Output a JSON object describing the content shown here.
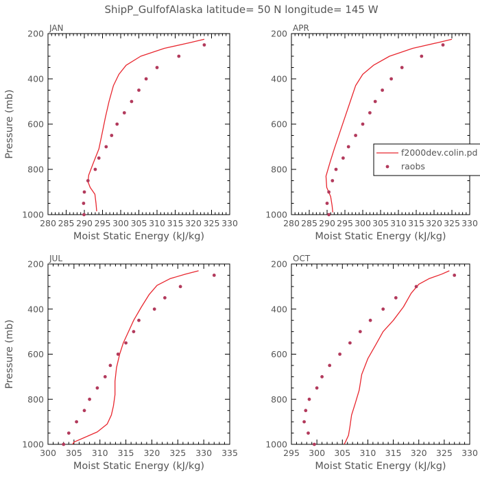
{
  "page": {
    "title": "ShipP_GulfofAlaska   latitude= 50 N longitude= 145 W"
  },
  "legend": {
    "model_label": "f2000dev.colin.pd",
    "obs_label": "raobs"
  },
  "colors": {
    "model": "#e8262e",
    "obs": "#b23a5c",
    "axis": "#000000",
    "text": "#555555"
  },
  "chart_data": [
    {
      "type": "line",
      "panel_label": "JAN",
      "xlabel": "Moist Static Energy (kJ/kg)",
      "ylabel": "Pressure (mb)",
      "xlim": [
        280,
        330
      ],
      "ylim": [
        1000,
        200
      ],
      "xticks": [
        280,
        285,
        290,
        295,
        300,
        305,
        310,
        315,
        320,
        325,
        330
      ],
      "yticks": [
        200,
        400,
        600,
        800,
        1000
      ],
      "series": [
        {
          "name": "f2000dev.colin.pd",
          "kind": "line",
          "points": [
            [
              323.0,
              225
            ],
            [
              319.0,
              240
            ],
            [
              312.0,
              265
            ],
            [
              305.5,
              300
            ],
            [
              301.5,
              340
            ],
            [
              299.5,
              380
            ],
            [
              298.0,
              430
            ],
            [
              296.8,
              500
            ],
            [
              295.8,
              570
            ],
            [
              294.9,
              640
            ],
            [
              294.0,
              710
            ],
            [
              292.5,
              770
            ],
            [
              291.2,
              825
            ],
            [
              291.0,
              855
            ],
            [
              291.6,
              880
            ],
            [
              292.9,
              910
            ],
            [
              293.2,
              950
            ],
            [
              293.4,
              985
            ]
          ]
        },
        {
          "name": "raobs",
          "kind": "scatter",
          "points": [
            [
              323.0,
              250
            ],
            [
              316.0,
              300
            ],
            [
              310.0,
              350
            ],
            [
              307.0,
              400
            ],
            [
              305.0,
              450
            ],
            [
              303.0,
              500
            ],
            [
              301.0,
              550
            ],
            [
              299.0,
              600
            ],
            [
              297.5,
              650
            ],
            [
              296.0,
              700
            ],
            [
              294.0,
              750
            ],
            [
              293.0,
              800
            ],
            [
              291.0,
              850
            ],
            [
              290.0,
              900
            ],
            [
              289.8,
              950
            ],
            [
              289.9,
              1000
            ]
          ]
        }
      ]
    },
    {
      "type": "line",
      "panel_label": "APR",
      "xlabel": "Moist Static Energy (kJ/kg)",
      "ylabel": "",
      "xlim": [
        280,
        330
      ],
      "ylim": [
        1000,
        200
      ],
      "xticks": [
        280,
        285,
        290,
        295,
        300,
        305,
        310,
        315,
        320,
        325,
        330
      ],
      "yticks": [
        200,
        400,
        600,
        800,
        1000
      ],
      "series": [
        {
          "name": "f2000dev.colin.pd",
          "kind": "line",
          "points": [
            [
              325.0,
              225
            ],
            [
              321.0,
              240
            ],
            [
              314.0,
              265
            ],
            [
              307.5,
              300
            ],
            [
              303.0,
              340
            ],
            [
              300.0,
              380
            ],
            [
              298.0,
              430
            ],
            [
              296.5,
              500
            ],
            [
              295.0,
              570
            ],
            [
              293.5,
              640
            ],
            [
              292.0,
              710
            ],
            [
              290.8,
              770
            ],
            [
              289.7,
              830
            ],
            [
              289.9,
              880
            ],
            [
              291.0,
              920
            ],
            [
              291.4,
              960
            ],
            [
              291.6,
              990
            ]
          ]
        },
        {
          "name": "raobs",
          "kind": "scatter",
          "points": [
            [
              322.5,
              250
            ],
            [
              316.5,
              300
            ],
            [
              311.0,
              350
            ],
            [
              308.0,
              400
            ],
            [
              305.5,
              450
            ],
            [
              303.5,
              500
            ],
            [
              302.0,
              550
            ],
            [
              300.0,
              600
            ],
            [
              298.0,
              650
            ],
            [
              296.0,
              700
            ],
            [
              294.5,
              750
            ],
            [
              292.5,
              800
            ],
            [
              291.5,
              850
            ],
            [
              290.5,
              900
            ],
            [
              290.0,
              950
            ],
            [
              290.5,
              1000
            ]
          ]
        }
      ]
    },
    {
      "type": "line",
      "panel_label": "JUL",
      "xlabel": "Moist Static Energy (kJ/kg)",
      "ylabel": "Pressure (mb)",
      "xlim": [
        300,
        335
      ],
      "ylim": [
        1000,
        200
      ],
      "xticks": [
        300,
        305,
        310,
        315,
        320,
        325,
        330,
        335
      ],
      "yticks": [
        200,
        400,
        600,
        800,
        1000
      ],
      "series": [
        {
          "name": "f2000dev.colin.pd",
          "kind": "line",
          "points": [
            [
              329.0,
              230
            ],
            [
              326.5,
              245
            ],
            [
              323.5,
              265
            ],
            [
              321.0,
              295
            ],
            [
              319.5,
              335
            ],
            [
              318.0,
              390
            ],
            [
              316.5,
              450
            ],
            [
              315.5,
              500
            ],
            [
              314.5,
              550
            ],
            [
              313.8,
              600
            ],
            [
              313.2,
              660
            ],
            [
              312.9,
              720
            ],
            [
              312.9,
              780
            ],
            [
              312.6,
              830
            ],
            [
              312.2,
              870
            ],
            [
              311.4,
              910
            ],
            [
              309.5,
              945
            ],
            [
              307.0,
              970
            ],
            [
              305.0,
              990
            ],
            [
              304.6,
              1005
            ]
          ]
        },
        {
          "name": "raobs",
          "kind": "scatter",
          "points": [
            [
              332.0,
              250
            ],
            [
              325.5,
              300
            ],
            [
              322.5,
              350
            ],
            [
              320.5,
              400
            ],
            [
              317.5,
              450
            ],
            [
              316.5,
              500
            ],
            [
              315.0,
              550
            ],
            [
              313.5,
              600
            ],
            [
              312.0,
              650
            ],
            [
              311.0,
              700
            ],
            [
              309.5,
              750
            ],
            [
              308.0,
              800
            ],
            [
              307.0,
              850
            ],
            [
              305.5,
              900
            ],
            [
              304.0,
              950
            ],
            [
              303.0,
              1000
            ]
          ]
        }
      ]
    },
    {
      "type": "line",
      "panel_label": "OCT",
      "xlabel": "Moist Static Energy (kJ/kg)",
      "ylabel": "",
      "xlim": [
        295,
        330
      ],
      "ylim": [
        1000,
        200
      ],
      "xticks": [
        295,
        300,
        305,
        310,
        315,
        320,
        325,
        330
      ],
      "yticks": [
        200,
        400,
        600,
        800,
        1000
      ],
      "series": [
        {
          "name": "f2000dev.colin.pd",
          "kind": "line",
          "points": [
            [
              326.0,
              230
            ],
            [
              324.5,
              245
            ],
            [
              322.0,
              265
            ],
            [
              320.0,
              290
            ],
            [
              318.5,
              330
            ],
            [
              317.0,
              390
            ],
            [
              315.0,
              450
            ],
            [
              313.0,
              500
            ],
            [
              311.5,
              560
            ],
            [
              310.0,
              620
            ],
            [
              308.8,
              690
            ],
            [
              308.3,
              760
            ],
            [
              307.5,
              820
            ],
            [
              306.8,
              870
            ],
            [
              306.5,
              920
            ],
            [
              306.2,
              960
            ],
            [
              305.6,
              990
            ],
            [
              305.2,
              1005
            ]
          ]
        },
        {
          "name": "raobs",
          "kind": "scatter",
          "points": [
            [
              327.0,
              250
            ],
            [
              319.5,
              300
            ],
            [
              315.5,
              350
            ],
            [
              313.0,
              400
            ],
            [
              310.5,
              450
            ],
            [
              308.5,
              500
            ],
            [
              306.5,
              550
            ],
            [
              304.5,
              600
            ],
            [
              302.5,
              650
            ],
            [
              301.0,
              700
            ],
            [
              300.0,
              750
            ],
            [
              298.5,
              800
            ],
            [
              297.8,
              850
            ],
            [
              297.5,
              900
            ],
            [
              298.3,
              950
            ],
            [
              299.5,
              1000
            ]
          ]
        }
      ]
    }
  ]
}
